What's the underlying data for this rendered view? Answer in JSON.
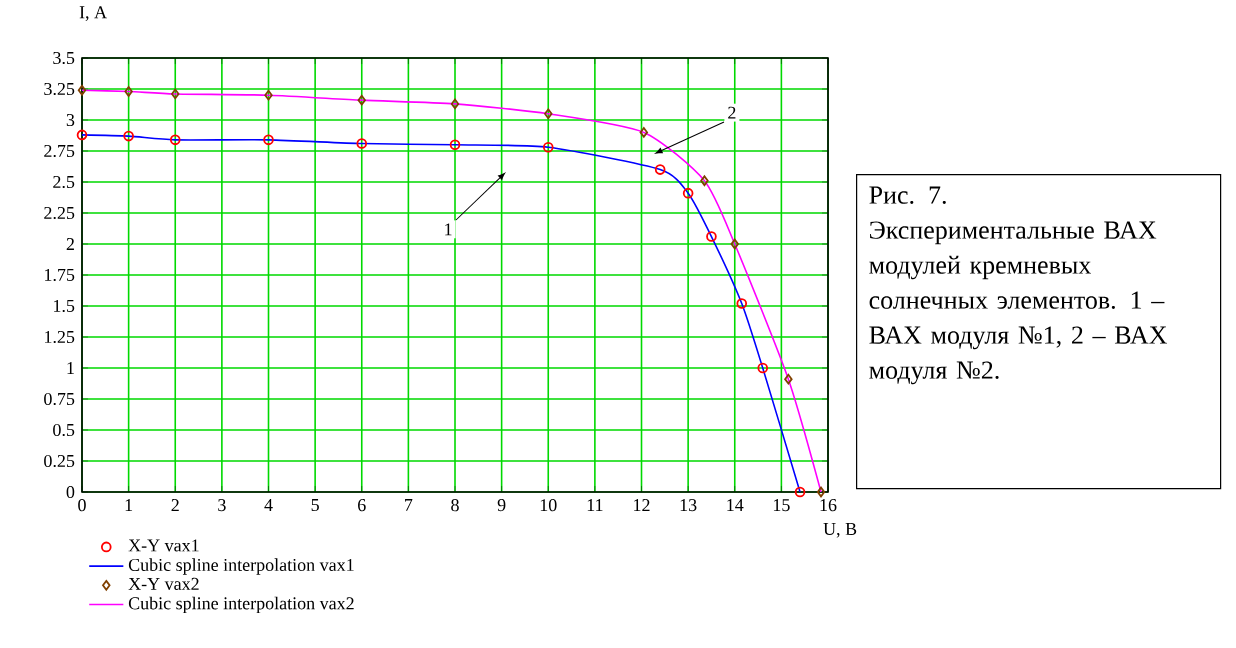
{
  "chart_data": {
    "type": "line",
    "xlabel": "U, B",
    "ylabel": "I, A",
    "xlim": [
      0,
      16
    ],
    "xticks": [
      0,
      1,
      2,
      3,
      4,
      5,
      6,
      7,
      8,
      9,
      10,
      11,
      12,
      13,
      14,
      15,
      16
    ],
    "ylim": [
      0,
      3.5
    ],
    "yticks": [
      0,
      0.25,
      0.5,
      0.75,
      1,
      1.25,
      1.5,
      1.75,
      2,
      2.25,
      2.5,
      2.75,
      3,
      3.25,
      3.5
    ],
    "grid": true,
    "legend": "bottom left",
    "series": [
      {
        "name": "X-Y vax1",
        "type": "scatter",
        "marker": "circle",
        "color": "#ff0000",
        "x": [
          0,
          1,
          2,
          4,
          6,
          8,
          10,
          12.4,
          13,
          13.5,
          14.15,
          14.6,
          15.4
        ],
        "values": [
          2.88,
          2.87,
          2.84,
          2.84,
          2.81,
          2.8,
          2.78,
          2.6,
          2.41,
          2.06,
          1.52,
          1.0,
          0
        ]
      },
      {
        "name": "Cubic spline interpolation vax1",
        "marker": "none",
        "color": "#0000ff",
        "x": [
          0,
          1,
          2,
          4,
          6,
          8,
          10,
          12.4,
          13,
          13.5,
          14.15,
          14.6,
          15.4
        ],
        "values": [
          2.88,
          2.87,
          2.84,
          2.84,
          2.81,
          2.8,
          2.78,
          2.6,
          2.41,
          2.06,
          1.52,
          1.0,
          0
        ]
      },
      {
        "name": "X-Y vax2",
        "type": "scatter",
        "marker": "diamond",
        "color": "#804000",
        "x": [
          0,
          1,
          2,
          4,
          6,
          8,
          10,
          12.05,
          13.35,
          14,
          15.15,
          15.85
        ],
        "values": [
          3.24,
          3.23,
          3.21,
          3.2,
          3.16,
          3.13,
          3.05,
          2.9,
          2.51,
          2.0,
          0.91,
          0
        ]
      },
      {
        "name": "Cubic spline interpolation vax2",
        "marker": "none",
        "color": "#ff00ff",
        "x": [
          0,
          1,
          2,
          4,
          6,
          8,
          10,
          12.05,
          13.35,
          14,
          15.15,
          15.85
        ],
        "values": [
          3.24,
          3.23,
          3.21,
          3.2,
          3.16,
          3.13,
          3.05,
          2.9,
          2.51,
          2.0,
          0.91,
          0
        ]
      }
    ],
    "annotations": [
      "Рис. 7. Экспериментальные ВАХ модулей кремневых солнечных элементов. 1 – ВАХ модуля №1, 2 – ВАХ модуля №2.",
      "1",
      "2"
    ]
  }
}
